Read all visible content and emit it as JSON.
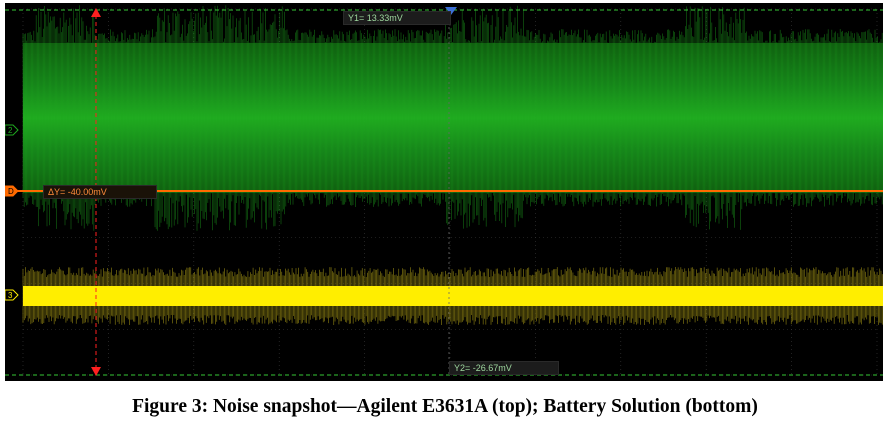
{
  "figure_caption": "Figure 3: Noise snapshot—Agilent E3631A (top); Battery Solution (bottom)",
  "cursors": {
    "y1_label": "Y1= 13.33mV",
    "y2_label": "Y2= -26.67mV",
    "delta_label": "ΔY= -40.00mV",
    "y1_mv": 13.33,
    "y2_mv": -26.67,
    "delta_mv": -40.0
  },
  "channel_markers": [
    "2",
    "D",
    "3"
  ],
  "colors": {
    "background": "#000000",
    "grid": "#3a3a3a",
    "channel_top": "#1fa81f",
    "channel_top_core": "#2ecc2e",
    "channel_bottom": "#ffee00",
    "channel_bottom_halo": "#8a7d12",
    "reference_line": "#ff6a00",
    "cursor_vertical": "#ff2020",
    "cursor_horizontal": "#36c836",
    "trigger_marker": "#3d6fd6"
  },
  "chart_data": {
    "type": "line",
    "title": "",
    "xlabel": "",
    "ylabel": "",
    "grid": true,
    "series": [
      {
        "name": "Agilent E3631A (top)",
        "description_of_shape": "dense noise band with bursts",
        "cursor_y1_mv": 13.33,
        "cursor_y2_mv": -26.67
      },
      {
        "name": "Battery Solution (bottom)",
        "description_of_shape": "narrow flat noise band"
      }
    ]
  }
}
